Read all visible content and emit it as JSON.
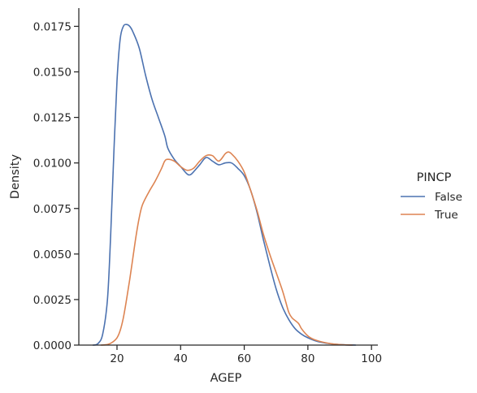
{
  "chart_data": {
    "type": "line",
    "xlabel": "AGEP",
    "ylabel": "Density",
    "xlim": [
      8,
      102
    ],
    "ylim": [
      0,
      0.0185
    ],
    "xticks": [
      "20",
      "40",
      "60",
      "80",
      "100"
    ],
    "yticks": [
      "0.0000",
      "0.0025",
      "0.0050",
      "0.0075",
      "0.0100",
      "0.0125",
      "0.0150",
      "0.0175"
    ],
    "grid": false,
    "legend": {
      "title": "PINCP",
      "placement": "right"
    },
    "series": [
      {
        "name": "False",
        "color": "#4c72b0",
        "points": [
          [
            12.5,
            0.0
          ],
          [
            14,
            8e-05
          ],
          [
            15.5,
            0.0006
          ],
          [
            17,
            0.0025
          ],
          [
            18,
            0.006
          ],
          [
            19,
            0.0105
          ],
          [
            20,
            0.0145
          ],
          [
            21,
            0.0168
          ],
          [
            22,
            0.0175
          ],
          [
            23,
            0.0176
          ],
          [
            24,
            0.0175
          ],
          [
            25,
            0.0172
          ],
          [
            27,
            0.0163
          ],
          [
            29,
            0.0148
          ],
          [
            31,
            0.0135
          ],
          [
            33,
            0.0125
          ],
          [
            35,
            0.0115
          ],
          [
            36,
            0.0108
          ],
          [
            38,
            0.0102
          ],
          [
            40,
            0.0098
          ],
          [
            42,
            0.0094
          ],
          [
            43,
            0.00935
          ],
          [
            44,
            0.0095
          ],
          [
            46,
            0.0099
          ],
          [
            48,
            0.0103
          ],
          [
            50,
            0.0101
          ],
          [
            52,
            0.0099
          ],
          [
            54,
            0.01
          ],
          [
            56,
            0.01
          ],
          [
            58,
            0.0097
          ],
          [
            60,
            0.0093
          ],
          [
            62,
            0.0085
          ],
          [
            64,
            0.0073
          ],
          [
            66,
            0.0058
          ],
          [
            68,
            0.0044
          ],
          [
            70,
            0.0031
          ],
          [
            72,
            0.0021
          ],
          [
            74,
            0.0014
          ],
          [
            76,
            0.0009
          ],
          [
            78,
            0.0006
          ],
          [
            80,
            0.0004
          ],
          [
            83,
            0.0002
          ],
          [
            86,
            0.0001
          ],
          [
            89,
            4e-05
          ],
          [
            92,
            1e-05
          ],
          [
            95,
            0.0
          ]
        ]
      },
      {
        "name": "True",
        "color": "#dd8452",
        "points": [
          [
            15,
            0.0
          ],
          [
            17,
            3e-05
          ],
          [
            18.5,
            0.00015
          ],
          [
            20,
            0.0004
          ],
          [
            21,
            0.0008
          ],
          [
            22,
            0.0015
          ],
          [
            23,
            0.0025
          ],
          [
            24,
            0.0036
          ],
          [
            25,
            0.0048
          ],
          [
            26,
            0.006
          ],
          [
            27,
            0.007
          ],
          [
            28,
            0.0077
          ],
          [
            30,
            0.0084
          ],
          [
            32,
            0.009
          ],
          [
            34,
            0.0097
          ],
          [
            35,
            0.0101
          ],
          [
            36,
            0.0102
          ],
          [
            38,
            0.0101
          ],
          [
            40,
            0.0098
          ],
          [
            42,
            0.0096
          ],
          [
            44,
            0.0097
          ],
          [
            46,
            0.0101
          ],
          [
            48,
            0.0104
          ],
          [
            50,
            0.0104
          ],
          [
            52,
            0.0101
          ],
          [
            54,
            0.0105
          ],
          [
            55,
            0.0106
          ],
          [
            56,
            0.0105
          ],
          [
            58,
            0.0101
          ],
          [
            60,
            0.0095
          ],
          [
            62,
            0.0085
          ],
          [
            64,
            0.0074
          ],
          [
            66,
            0.0061
          ],
          [
            68,
            0.005
          ],
          [
            70,
            0.004
          ],
          [
            72,
            0.003
          ],
          [
            73,
            0.0024
          ],
          [
            74,
            0.0018
          ],
          [
            75,
            0.0015
          ],
          [
            77,
            0.0012
          ],
          [
            78,
            0.0009
          ],
          [
            80,
            0.0005
          ],
          [
            82,
            0.0003
          ],
          [
            85,
            0.00015
          ],
          [
            88,
            6e-05
          ],
          [
            91,
            2e-05
          ],
          [
            94,
            0.0
          ]
        ]
      }
    ]
  }
}
